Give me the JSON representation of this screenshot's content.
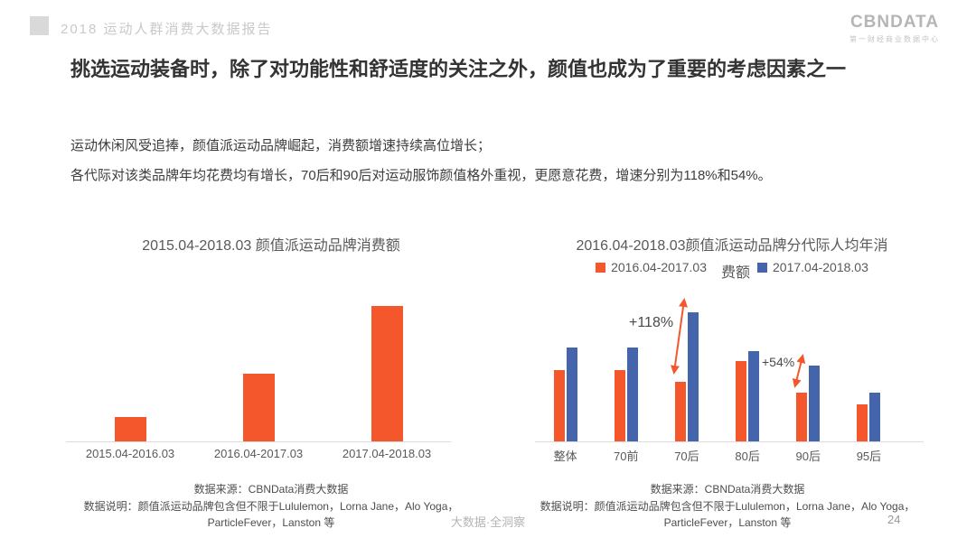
{
  "header": {
    "report_title": "2018 运动人群消费大数据报告",
    "logo_text": "CBNDATA",
    "logo_subtitle": "第一财经商业数据中心"
  },
  "headline": "挑选运动装备时，除了对功能性和舒适度的关注之外，颜值也成为了重要的考虑因素之一",
  "body": {
    "line1": "运动休闲风受追捧，颜值派运动品牌崛起，消费额增速持续高位增长；",
    "line2": "各代际对该类品牌年均花费均有增长，70后和90后对运动服饰颜值格外重视，更愿意花费，增速分别为118%和54%。"
  },
  "notes": {
    "source": "数据来源：CBNData消费大数据",
    "desc_line1": "数据说明：颜值派运动品牌包含但不限于Lululemon，Lorna Jane，Alo Yoga，",
    "desc_line2": "ParticleFever，Lanston 等"
  },
  "footer": {
    "watermark": "大数据·全洞察",
    "page_number": "24"
  },
  "colors": {
    "orange": "#F4572C",
    "blue": "#4464AC",
    "arrow": "#F4572C"
  },
  "chart_data": [
    {
      "type": "bar",
      "title": "2015.04-2018.03 颜值派运动品牌消费额",
      "categories": [
        "2015.04-2016.03",
        "2016.04-2017.03",
        "2017.04-2018.03"
      ],
      "values": [
        18,
        50,
        100
      ],
      "values_unit": "relative index (no numeric axis shown)",
      "bar_color": "#F4572C",
      "grid": false,
      "ylim": [
        0,
        100
      ]
    },
    {
      "type": "bar",
      "title": "2016.04-2018.03颜值派运动品牌分代际人均年消费额",
      "title_wrap": [
        "2016.04-2018.03颜值派运动品牌分代际人均年消",
        "费额"
      ],
      "categories": [
        "整体",
        "70前",
        "70后",
        "80后",
        "90后",
        "95后"
      ],
      "series": [
        {
          "name": "2016.04-2017.03",
          "color": "#F4572C",
          "values": [
            55,
            55,
            46,
            62,
            38,
            29
          ]
        },
        {
          "name": "2017.04-2018.03",
          "color": "#4464AC",
          "values": [
            73,
            73,
            100,
            70,
            59,
            38
          ]
        }
      ],
      "values_unit": "relative index (no numeric axis shown)",
      "legend_position": "top",
      "grid": false,
      "ylim": [
        0,
        100
      ],
      "annotations": [
        {
          "label": "+118%",
          "category": "70后",
          "between": [
            "2016.04-2017.03",
            "2017.04-2018.03"
          ]
        },
        {
          "label": "+54%",
          "category": "90后",
          "between": [
            "2016.04-2017.03",
            "2017.04-2018.03"
          ]
        }
      ]
    }
  ]
}
